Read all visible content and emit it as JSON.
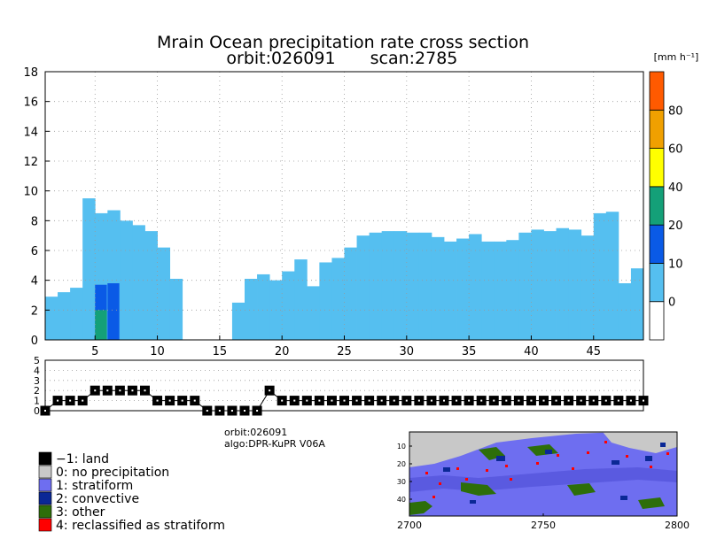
{
  "chart_data": [
    {
      "type": "heatmap",
      "title": "Mrain Ocean precipitation rate cross section",
      "subtitle": [
        "orbit:026091",
        "scan:2785"
      ],
      "xlim": [
        1,
        49
      ],
      "ylim": [
        0,
        18
      ],
      "x_ticks": [
        5,
        10,
        15,
        20,
        25,
        30,
        35,
        40,
        45
      ],
      "y_ticks": [
        0,
        2,
        4,
        6,
        8,
        10,
        12,
        14,
        16,
        18
      ],
      "grid": true,
      "columns": [
        {
          "x": 1,
          "top": 2.9
        },
        {
          "x": 2,
          "top": 3.2
        },
        {
          "x": 3,
          "top": 3.5
        },
        {
          "x": 4,
          "top": 9.5
        },
        {
          "x": 5,
          "top": 8.5
        },
        {
          "x": 6,
          "top": 8.7
        },
        {
          "x": 7,
          "top": 8.0
        },
        {
          "x": 8,
          "top": 7.7
        },
        {
          "x": 9,
          "top": 7.3
        },
        {
          "x": 10,
          "top": 6.2
        },
        {
          "x": 11,
          "top": 4.1
        },
        {
          "x": 12,
          "top": 0
        },
        {
          "x": 13,
          "top": 0
        },
        {
          "x": 14,
          "top": 0
        },
        {
          "x": 15,
          "top": 0
        },
        {
          "x": 16,
          "top": 2.5
        },
        {
          "x": 17,
          "top": 4.1
        },
        {
          "x": 18,
          "top": 4.4
        },
        {
          "x": 19,
          "top": 4.0
        },
        {
          "x": 20,
          "top": 4.6
        },
        {
          "x": 21,
          "top": 5.4
        },
        {
          "x": 22,
          "top": 3.6
        },
        {
          "x": 23,
          "top": 5.2
        },
        {
          "x": 24,
          "top": 5.5
        },
        {
          "x": 25,
          "top": 6.2
        },
        {
          "x": 26,
          "top": 7.0
        },
        {
          "x": 27,
          "top": 7.2
        },
        {
          "x": 28,
          "top": 7.3
        },
        {
          "x": 29,
          "top": 7.3
        },
        {
          "x": 30,
          "top": 7.2
        },
        {
          "x": 31,
          "top": 7.2
        },
        {
          "x": 32,
          "top": 6.9
        },
        {
          "x": 33,
          "top": 6.6
        },
        {
          "x": 34,
          "top": 6.8
        },
        {
          "x": 35,
          "top": 7.1
        },
        {
          "x": 36,
          "top": 6.6
        },
        {
          "x": 37,
          "top": 6.6
        },
        {
          "x": 38,
          "top": 6.7
        },
        {
          "x": 39,
          "top": 7.2
        },
        {
          "x": 40,
          "top": 7.4
        },
        {
          "x": 41,
          "top": 7.3
        },
        {
          "x": 42,
          "top": 7.5
        },
        {
          "x": 43,
          "top": 7.4
        },
        {
          "x": 44,
          "top": 7.0
        },
        {
          "x": 45,
          "top": 8.5
        },
        {
          "x": 46,
          "top": 8.6
        },
        {
          "x": 47,
          "top": 3.8
        },
        {
          "x": 48,
          "top": 4.8
        }
      ],
      "cores": [
        {
          "x": 5,
          "top": 3.7,
          "bottom": 0,
          "value": 15
        },
        {
          "x": 5,
          "top": 2.0,
          "bottom": 0,
          "value": 30
        },
        {
          "x": 6,
          "top": 3.8,
          "bottom": 0,
          "value": 15
        }
      ]
    },
    {
      "type": "line",
      "ylim": [
        0,
        5
      ],
      "y_ticks": [
        0,
        1,
        2,
        3,
        4,
        5
      ],
      "x": [
        1,
        2,
        3,
        4,
        5,
        6,
        7,
        8,
        9,
        10,
        11,
        12,
        13,
        14,
        15,
        16,
        17,
        18,
        19,
        20,
        21,
        22,
        23,
        24,
        25,
        26,
        27,
        28,
        29,
        30,
        31,
        32,
        33,
        34,
        35,
        36,
        37,
        38,
        39,
        40,
        41,
        42,
        43,
        44,
        45,
        46,
        47,
        48,
        49
      ],
      "values": [
        0,
        1,
        1,
        1,
        2,
        2,
        2,
        2,
        2,
        1,
        1,
        1,
        1,
        0,
        0,
        0,
        0,
        0,
        2,
        1,
        1,
        1,
        1,
        1,
        1,
        1,
        1,
        1,
        1,
        1,
        1,
        1,
        1,
        1,
        1,
        1,
        1,
        1,
        1,
        1,
        1,
        1,
        1,
        1,
        1,
        1,
        1,
        1,
        1
      ]
    },
    {
      "type": "heatmap",
      "x_ticks": [
        2700,
        2750,
        2800
      ],
      "y_ticks": [
        10,
        20,
        30,
        40
      ]
    }
  ],
  "colorbar": {
    "unit": "[mm h⁻¹]",
    "labels": [
      "0",
      "10",
      "20",
      "40",
      "60",
      "80"
    ],
    "colors": [
      "#ffffff",
      "#55bff0",
      "#0a5ae6",
      "#14a078",
      "#ffff00",
      "#f0a000",
      "#ff5a00"
    ]
  },
  "info": {
    "orbit": "orbit:026091",
    "algo": "algo:DPR-KuPR V06A"
  },
  "legend": [
    {
      "label": "−1: land",
      "color": "#000000"
    },
    {
      "label": "0: no precipitation",
      "color": "#c8c8c8"
    },
    {
      "label": "1: stratiform",
      "color": "#6e6ef0"
    },
    {
      "label": "2: convective",
      "color": "#0a2896"
    },
    {
      "label": "3: other",
      "color": "#2d6e0a"
    },
    {
      "label": "4: reclassified as stratiform",
      "color": "#ff0000"
    }
  ],
  "colors": {
    "rain": "#55bff0",
    "core_mid": "#0a5ae6",
    "core_high": "#14a078",
    "grid": "#9a9a9a"
  }
}
